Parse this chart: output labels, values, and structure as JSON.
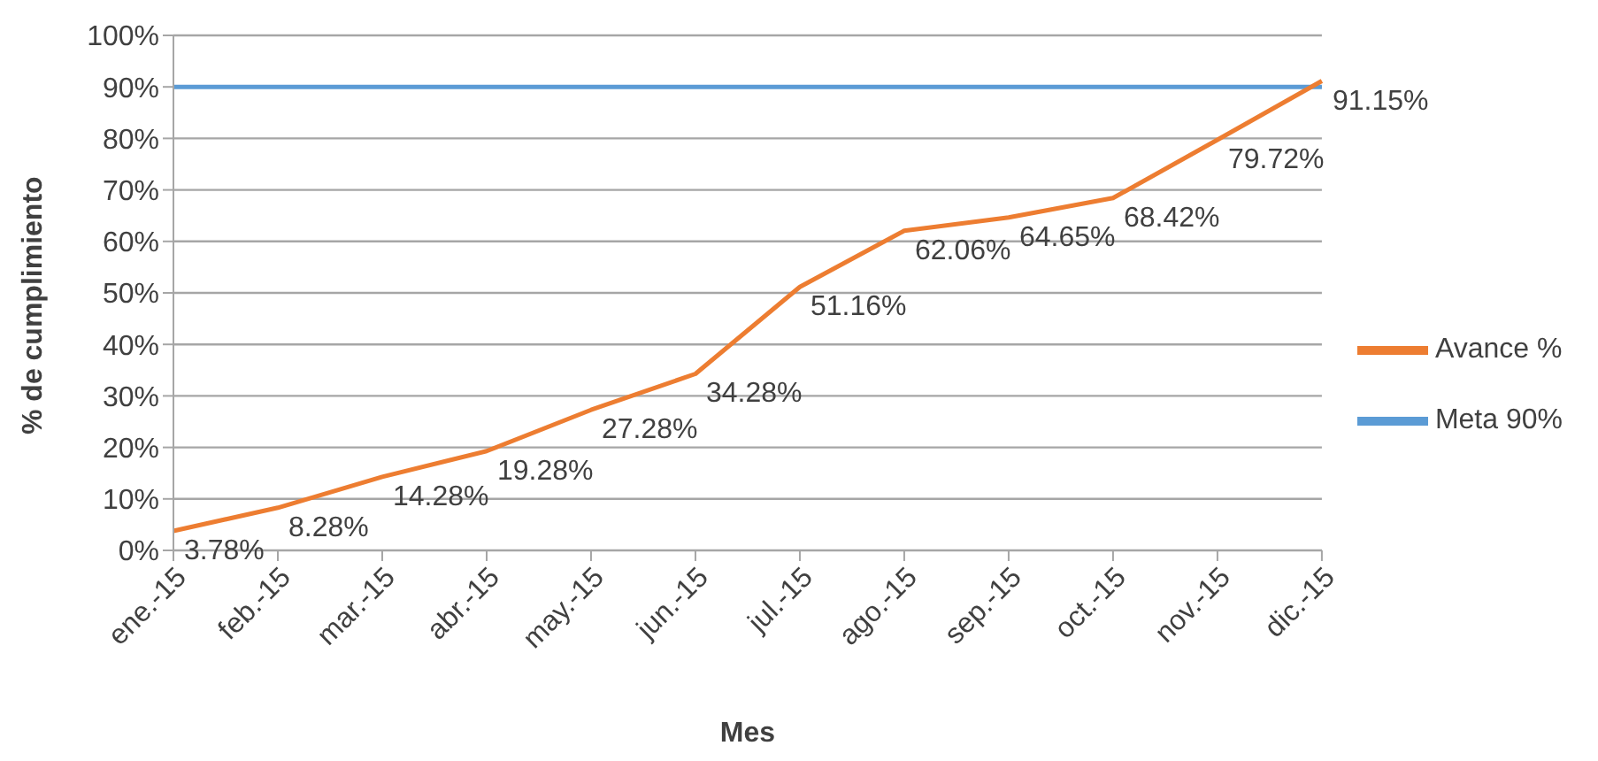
{
  "chart_data": {
    "type": "line",
    "xlabel": "Mes",
    "ylabel": "% de cumplimiento",
    "categories": [
      "ene.-15",
      "feb.-15",
      "mar.-15",
      "abr.-15",
      "may.-15",
      "jun.-15",
      "jul.-15",
      "ago.-15",
      "sep.-15",
      "oct.-15",
      "nov.-15",
      "dic.-15"
    ],
    "series": [
      {
        "name": "Meta 90%",
        "color": "#5b9bd5",
        "values": [
          90,
          90,
          90,
          90,
          90,
          90,
          90,
          90,
          90,
          90,
          90,
          90
        ]
      },
      {
        "name": "Avance %",
        "color": "#ed7d31",
        "values": [
          3.78,
          8.28,
          14.28,
          19.28,
          27.28,
          34.28,
          51.16,
          62.06,
          64.65,
          68.42,
          79.72,
          91.15
        ],
        "value_labels": [
          "3.78%",
          "8.28%",
          "14.28%",
          "19.28%",
          "27.28%",
          "34.28%",
          "51.16%",
          "62.06%",
          "64.65%",
          "68.42%",
          "79.72%",
          "91.15%"
        ]
      }
    ],
    "ylim": [
      0,
      100
    ],
    "yticks": [
      {
        "value": 0,
        "label": "0%"
      },
      {
        "value": 10,
        "label": "10%"
      },
      {
        "value": 20,
        "label": "20%"
      },
      {
        "value": 30,
        "label": "30%"
      },
      {
        "value": 40,
        "label": "40%"
      },
      {
        "value": 50,
        "label": "50%"
      },
      {
        "value": 60,
        "label": "60%"
      },
      {
        "value": 70,
        "label": "70%"
      },
      {
        "value": 80,
        "label": "80%"
      },
      {
        "value": 90,
        "label": "90%"
      },
      {
        "value": 100,
        "label": "100%"
      }
    ],
    "grid": "y",
    "legend": "right",
    "marker": "none",
    "line_style": "solid"
  }
}
